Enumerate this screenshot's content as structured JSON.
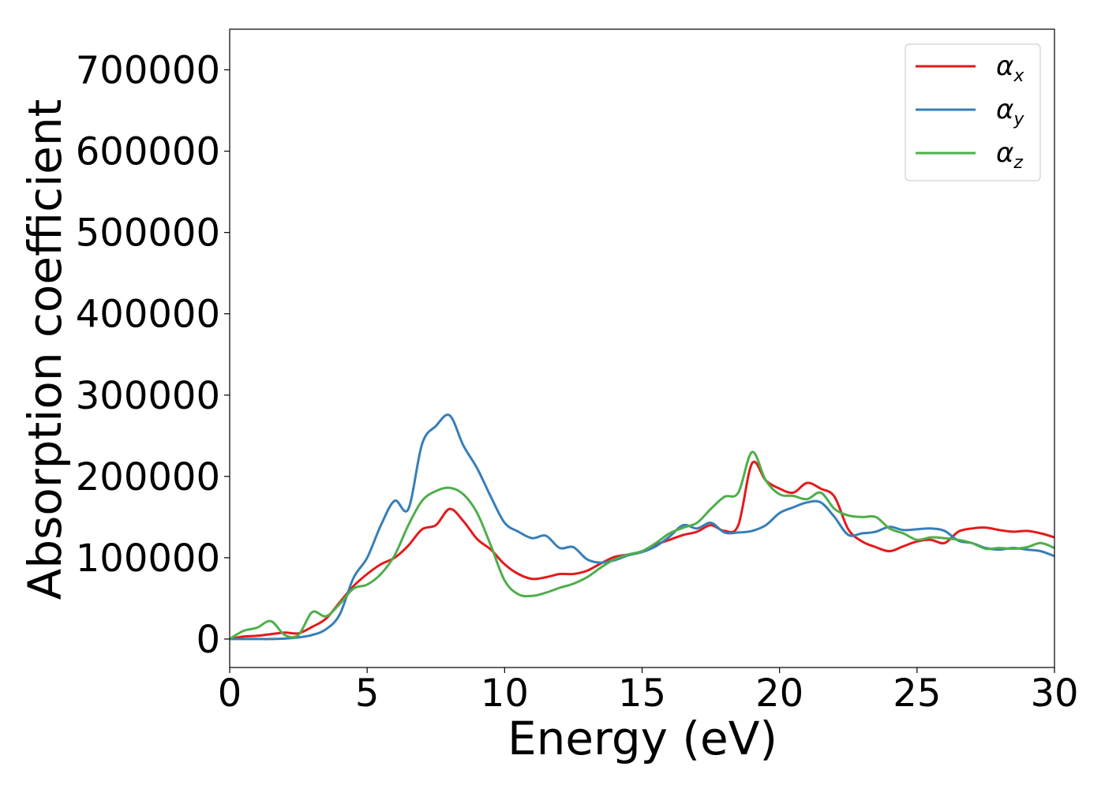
{
  "chart_data": {
    "type": "line",
    "title": "",
    "xlabel": "Energy (eV)",
    "ylabel": "Absorption coefficient",
    "xlim": [
      0,
      30
    ],
    "ylim": [
      -35000,
      750000
    ],
    "xticks": [
      0,
      5,
      10,
      15,
      20,
      25,
      30
    ],
    "yticks": [
      0,
      100000,
      200000,
      300000,
      400000,
      500000,
      600000,
      700000
    ],
    "grid": false,
    "legend": "top-right",
    "series": [
      {
        "name": "αx",
        "legend_symbol": "α",
        "legend_sub": "x",
        "color": "#e41a1c",
        "x": [
          0,
          0.5,
          1,
          1.5,
          2,
          2.5,
          3,
          3.5,
          4,
          4.5,
          5,
          5.5,
          6,
          6.5,
          7,
          7.5,
          8,
          8.5,
          9,
          9.5,
          10,
          10.5,
          11,
          11.5,
          12,
          12.5,
          13,
          13.5,
          14,
          14.5,
          15,
          15.5,
          16,
          16.5,
          17,
          17.5,
          18,
          18.5,
          19,
          19.5,
          20,
          20.5,
          21,
          21.5,
          22,
          22.5,
          23,
          23.5,
          24,
          24.5,
          25,
          25.5,
          26,
          26.5,
          27,
          27.5,
          28,
          28.5,
          29,
          29.5,
          30
        ],
        "y": [
          0,
          3000,
          4000,
          6000,
          8000,
          7000,
          15000,
          25000,
          45000,
          65000,
          80000,
          92000,
          100000,
          115000,
          135000,
          140000,
          160000,
          145000,
          123000,
          110000,
          92000,
          80000,
          74000,
          76000,
          80000,
          80000,
          84000,
          93000,
          101000,
          104000,
          108000,
          116000,
          122000,
          128000,
          132000,
          140000,
          133000,
          140000,
          216000,
          195000,
          185000,
          180000,
          192000,
          185000,
          175000,
          135000,
          120000,
          113000,
          108000,
          114000,
          120000,
          122000,
          118000,
          132000,
          136000,
          137000,
          134000,
          132000,
          133000,
          130000,
          125000
        ]
      },
      {
        "name": "αy",
        "legend_symbol": "α",
        "legend_sub": "y",
        "color": "#377eb8",
        "x": [
          0,
          0.5,
          1,
          1.5,
          2,
          2.5,
          3,
          3.5,
          4,
          4.5,
          5,
          5.5,
          6,
          6.5,
          7,
          7.5,
          8,
          8.5,
          9,
          9.5,
          10,
          10.5,
          11,
          11.5,
          12,
          12.5,
          13,
          13.5,
          14,
          14.5,
          15,
          15.5,
          16,
          16.5,
          17,
          17.5,
          18,
          18.5,
          19,
          19.5,
          20,
          20.5,
          21,
          21.5,
          22,
          22.5,
          23,
          23.5,
          24,
          24.5,
          25,
          25.5,
          26,
          26.5,
          27,
          27.5,
          28,
          28.5,
          29,
          29.5,
          30
        ],
        "y": [
          0,
          0,
          0,
          0,
          500,
          2000,
          5000,
          12000,
          30000,
          75000,
          100000,
          140000,
          170000,
          160000,
          240000,
          262000,
          275000,
          238000,
          210000,
          175000,
          143000,
          132000,
          124000,
          127000,
          112000,
          113000,
          98000,
          94000,
          97000,
          103000,
          107000,
          114000,
          126000,
          140000,
          136000,
          143000,
          131000,
          131000,
          133000,
          140000,
          155000,
          162000,
          168000,
          168000,
          150000,
          128000,
          130000,
          132000,
          138000,
          134000,
          135000,
          136000,
          133000,
          121000,
          118000,
          112000,
          110000,
          112000,
          110000,
          108000,
          102000
        ]
      },
      {
        "name": "αz",
        "legend_symbol": "α",
        "legend_sub": "z",
        "color": "#4daf4a",
        "x": [
          0,
          0.5,
          1,
          1.5,
          2,
          2.5,
          3,
          3.5,
          4,
          4.5,
          5,
          5.5,
          6,
          6.5,
          7,
          7.5,
          8,
          8.5,
          9,
          9.5,
          10,
          10.5,
          11,
          11.5,
          12,
          12.5,
          13,
          13.5,
          14,
          14.5,
          15,
          15.5,
          16,
          16.5,
          17,
          17.5,
          18,
          18.5,
          19,
          19.5,
          20,
          20.5,
          21,
          21.5,
          22,
          22.5,
          23,
          23.5,
          24,
          24.5,
          25,
          25.5,
          26,
          26.5,
          27,
          27.5,
          28,
          28.5,
          29,
          29.5,
          30
        ],
        "y": [
          0,
          10000,
          14000,
          22000,
          5000,
          5000,
          33000,
          28000,
          43000,
          62000,
          67000,
          80000,
          103000,
          140000,
          170000,
          182000,
          186000,
          178000,
          155000,
          115000,
          72000,
          55000,
          53000,
          57000,
          63000,
          68000,
          76000,
          88000,
          98000,
          104000,
          108000,
          118000,
          130000,
          137000,
          143000,
          160000,
          175000,
          180000,
          230000,
          195000,
          178000,
          176000,
          172000,
          180000,
          160000,
          152000,
          150000,
          150000,
          136000,
          130000,
          122000,
          125000,
          124000,
          122000,
          118000,
          111000,
          112000,
          111000,
          113000,
          118000,
          112000
        ]
      }
    ]
  }
}
